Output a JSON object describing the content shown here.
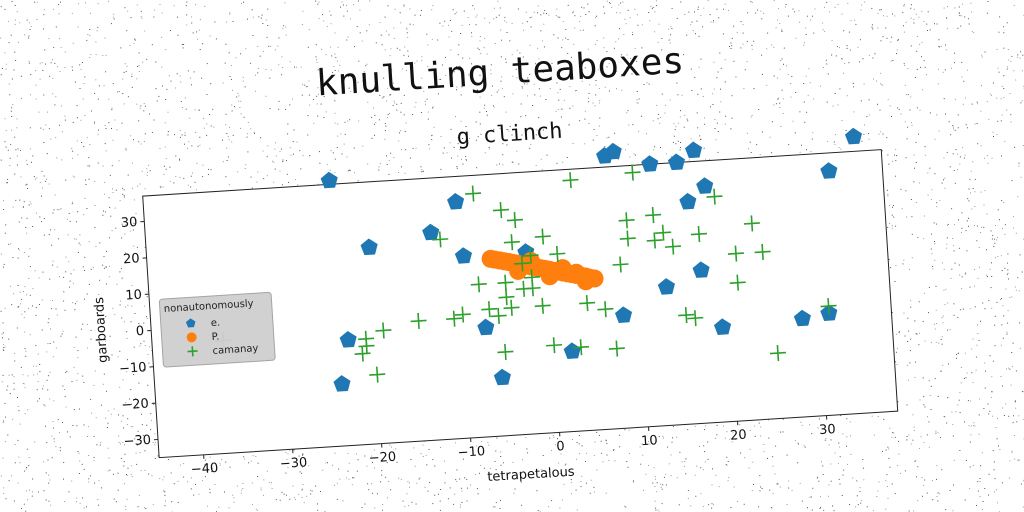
{
  "figure": {
    "suptitle": "knulling teaboxes"
  },
  "chart_data": {
    "type": "scatter",
    "title": "g clinch",
    "xlabel": "tetrapetalous",
    "ylabel": "garboards",
    "xlim": [
      -45,
      38
    ],
    "ylim": [
      -35,
      37
    ],
    "xticks": [
      -40,
      -30,
      -20,
      -10,
      0,
      10,
      20,
      30
    ],
    "yticks": [
      -30,
      -20,
      -10,
      0,
      10,
      20,
      30
    ],
    "grid": false,
    "legend": {
      "title": "nonautonomously",
      "location": "center-left"
    },
    "series": [
      {
        "name": "e.",
        "marker": "pentagon",
        "color": "#1f77b4",
        "points": [
          [
            -24,
            38
          ],
          [
            -20,
            19
          ],
          [
            -13,
            22
          ],
          [
            -10,
            30
          ],
          [
            -9.5,
            15
          ],
          [
            -23,
            -6
          ],
          [
            -24,
            -18
          ],
          [
            -7.5,
            -5
          ],
          [
            -6,
            -19
          ],
          [
            -2.5,
            15
          ],
          [
            2,
            -13
          ],
          [
            8,
            -4
          ],
          [
            7,
            40
          ],
          [
            8,
            41
          ],
          [
            12,
            37
          ],
          [
            15,
            37
          ],
          [
            17,
            40
          ],
          [
            13,
            3
          ],
          [
            16,
            26
          ],
          [
            18,
            30
          ],
          [
            17,
            7
          ],
          [
            19,
            -9
          ],
          [
            28,
            -8
          ],
          [
            31,
            -7
          ],
          [
            32,
            32
          ],
          [
            35,
            41
          ]
        ]
      },
      {
        "name": "P.",
        "marker": "circle",
        "color": "#ff7f0e",
        "points": [
          [
            -6.5,
            13.8
          ],
          [
            -6,
            13.5
          ],
          [
            -5.5,
            13.2
          ],
          [
            -5,
            12.9
          ],
          [
            -4.5,
            12.6
          ],
          [
            -4,
            12.3
          ],
          [
            -3.5,
            12
          ],
          [
            -3,
            11.7
          ],
          [
            -2.5,
            11.3
          ],
          [
            -2,
            11
          ],
          [
            -1.5,
            10.7
          ],
          [
            -1,
            10.4
          ],
          [
            -0.5,
            10.1
          ],
          [
            0,
            9.8
          ],
          [
            0.5,
            9.4
          ],
          [
            1,
            9.1
          ],
          [
            1.5,
            8.8
          ],
          [
            2,
            8.5
          ],
          [
            2.5,
            8.2
          ],
          [
            3,
            7.9
          ],
          [
            3.5,
            7.6
          ],
          [
            4,
            7.3
          ],
          [
            4.5,
            6.9
          ],
          [
            5,
            6.6
          ],
          [
            -3.5,
            10
          ],
          [
            0,
            8
          ],
          [
            3,
            8.5
          ],
          [
            -2,
            12.5
          ],
          [
            1.5,
            10
          ],
          [
            4,
            6
          ]
        ]
      },
      {
        "name": "camanay",
        "marker": "plus",
        "color": "#2ca02c",
        "points": [
          [
            -37,
            -4
          ],
          [
            -21,
            -6
          ],
          [
            -21,
            -8
          ],
          [
            -21.5,
            -10
          ],
          [
            -19,
            -4
          ],
          [
            -20,
            -16
          ],
          [
            -15,
            -2
          ],
          [
            -12,
            20
          ],
          [
            -11,
            -2
          ],
          [
            -10,
            -1
          ],
          [
            -8,
            32
          ],
          [
            -8,
            7
          ],
          [
            -7,
            0
          ],
          [
            -6,
            -2
          ],
          [
            -5,
            7
          ],
          [
            -5.5,
            -12
          ],
          [
            -5,
            3
          ],
          [
            -4.5,
            0
          ],
          [
            -4,
            18
          ],
          [
            -5,
            27
          ],
          [
            -3.5,
            24
          ],
          [
            -3,
            12
          ],
          [
            -3,
            5
          ],
          [
            -2,
            5
          ],
          [
            -2,
            14
          ],
          [
            -2,
            8
          ],
          [
            -1,
            0
          ],
          [
            -0.5,
            19
          ],
          [
            0,
            -11
          ],
          [
            1,
            14
          ],
          [
            3,
            34
          ],
          [
            3,
            -12
          ],
          [
            4,
            0
          ],
          [
            6,
            -2
          ],
          [
            7,
            -13
          ],
          [
            8,
            10
          ],
          [
            9,
            22
          ],
          [
            9,
            17
          ],
          [
            10,
            35
          ],
          [
            12,
            23
          ],
          [
            12,
            16
          ],
          [
            13,
            18
          ],
          [
            14,
            14
          ],
          [
            15,
            -5
          ],
          [
            16,
            -6
          ],
          [
            17,
            17
          ],
          [
            19,
            27
          ],
          [
            21,
            3
          ],
          [
            21,
            11
          ],
          [
            23,
            19
          ],
          [
            24,
            11
          ],
          [
            25,
            -17
          ],
          [
            31,
            -5
          ]
        ]
      }
    ]
  }
}
